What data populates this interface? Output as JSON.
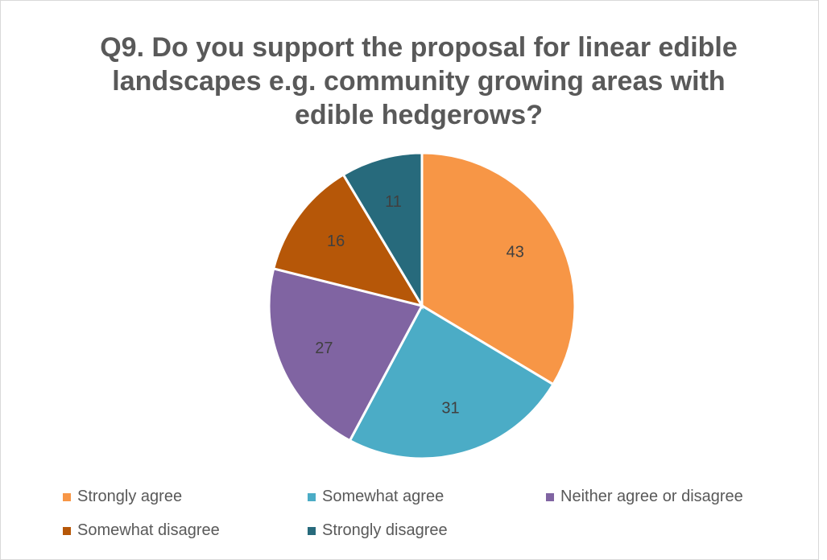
{
  "chart_data": {
    "type": "pie",
    "title_lines": [
      "Q9. Do you support the proposal for linear edible",
      "landscapes e.g. community growing areas with",
      "edible hedgerows?"
    ],
    "categories": [
      "Strongly agree",
      "Somewhat agree",
      "Neither agree or disagree",
      "Somewhat disagree",
      "Strongly disagree"
    ],
    "values": [
      43,
      31,
      27,
      16,
      11
    ],
    "colors": [
      "#f79646",
      "#4bacc6",
      "#8064a2",
      "#b65708",
      "#276a7c"
    ],
    "data_labels": [
      "43",
      "31",
      "27",
      "16",
      "11"
    ],
    "legend_position": "bottom",
    "start_angle": "12 o'clock, clockwise"
  }
}
